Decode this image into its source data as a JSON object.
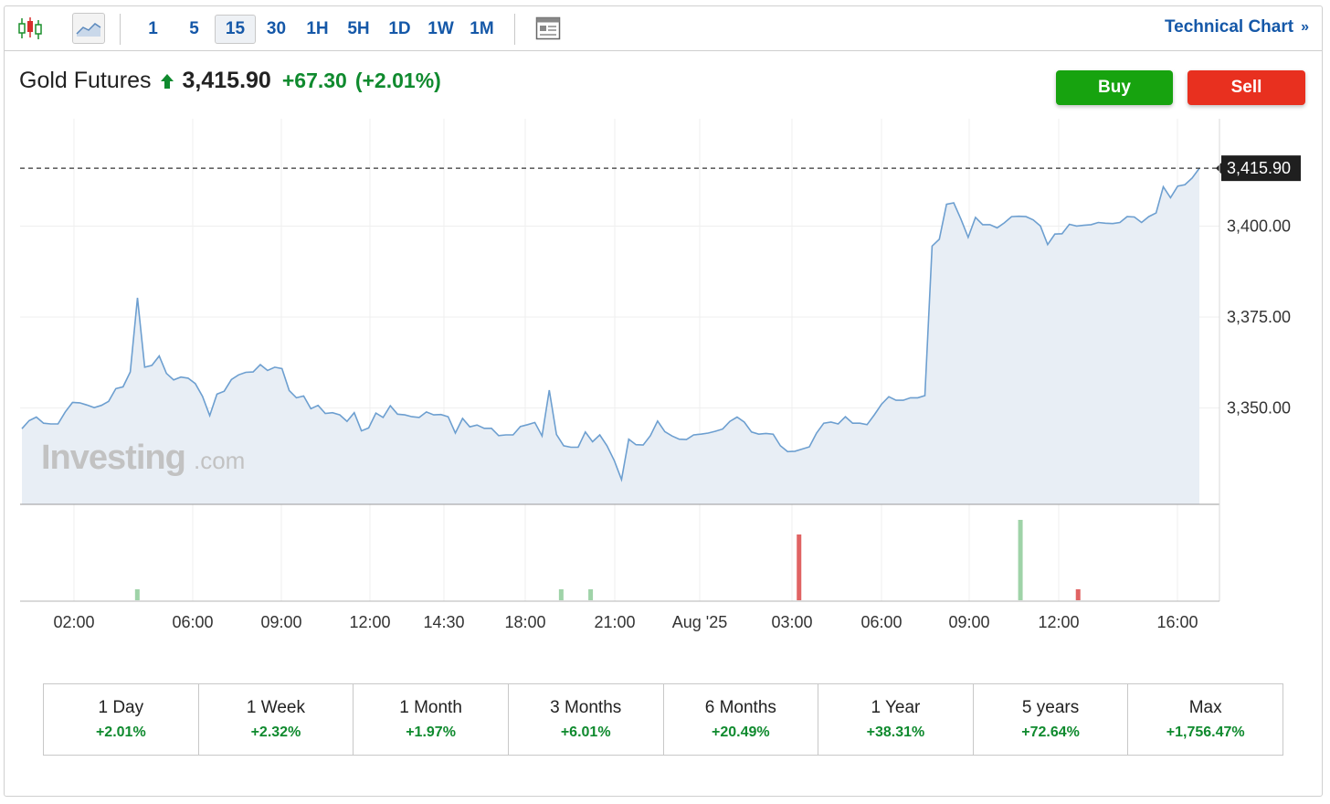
{
  "toolbar": {
    "intervals": [
      "1",
      "5",
      "15",
      "30",
      "1H",
      "5H",
      "1D",
      "1W",
      "1M"
    ],
    "active_interval": "15",
    "technical_chart_label": "Technical Chart",
    "technical_chart_chevron": "»",
    "icons": [
      "candlestick-icon",
      "line-chart-icon",
      "news-layout-icon"
    ]
  },
  "quote": {
    "name": "Gold Futures",
    "price": "3,415.90",
    "change": "+67.30",
    "change_pct": "(+2.01%)",
    "direction_icon": "up-arrow-icon"
  },
  "actions": {
    "buy_label": "Buy",
    "sell_label": "Sell"
  },
  "watermark": {
    "brand": "Investing",
    "suffix": ".com"
  },
  "colors": {
    "line": "#6d9fd0",
    "area": "#e8eef5",
    "positive": "#0f8a2e",
    "buy": "#17a30f",
    "sell": "#e8301f",
    "link": "#1558a8",
    "volume_up": "#9fd3a8",
    "volume_down": "#e06363"
  },
  "chart_data": {
    "type": "area",
    "x_tick_labels": [
      "02:00",
      "06:00",
      "09:00",
      "12:00",
      "14:30",
      "18:00",
      "21:00",
      "Aug '25",
      "03:00",
      "06:00",
      "09:00",
      "12:00",
      "16:00"
    ],
    "y_tick_labels": [
      "3,400.00",
      "3,375.00",
      "3,350.00"
    ],
    "y_ticks": [
      3400,
      3375,
      3350
    ],
    "ylim": [
      3323.5,
      3429.5
    ],
    "last_price_label": "3,415.90",
    "last_price": 3415.9,
    "grid": true,
    "series": [
      {
        "values": [
          3344.3,
          3346.5,
          3347.5,
          3345.8,
          3345.6,
          3345.6,
          3348.9,
          3351.5,
          3351.4,
          3350.8,
          3350.1,
          3350.7,
          3351.8,
          3355.3,
          3355.8,
          3359.9,
          3380.3,
          3361.2,
          3361.7,
          3364.3,
          3359.5,
          3357.7,
          3358.5,
          3358.2,
          3356.7,
          3353.2,
          3347.9,
          3353.8,
          3354.6,
          3357.8,
          3359.1,
          3359.8,
          3359.9,
          3361.9,
          3360.3,
          3361.2,
          3360.8,
          3354.8,
          3352.8,
          3353.3,
          3349.8,
          3350.7,
          3348.5,
          3348.7,
          3348.1,
          3346.3,
          3348.7,
          3343.7,
          3344.5,
          3348.6,
          3347.4,
          3350.6,
          3348.3,
          3348.1,
          3347.6,
          3347.4,
          3348.9,
          3348.1,
          3348.2,
          3347.6,
          3343.1,
          3347.1,
          3344.8,
          3345.3,
          3344.4,
          3344.4,
          3342.4,
          3342.6,
          3342.6,
          3344.9,
          3345.4,
          3346.0,
          3342.3,
          3354.9,
          3342.7,
          3339.6,
          3339.2,
          3339.2,
          3343.4,
          3340.7,
          3342.6,
          3339.6,
          3335.5,
          3330.3,
          3341.4,
          3339.9,
          3339.8,
          3342.4,
          3346.4,
          3343.5,
          3342.3,
          3341.4,
          3341.3,
          3342.6,
          3342.8,
          3343.1,
          3343.6,
          3344.2,
          3346.3,
          3347.5,
          3346.1,
          3343.4,
          3342.8,
          3343.0,
          3342.8,
          3339.6,
          3338.0,
          3338.1,
          3338.7,
          3339.3,
          3343.1,
          3345.8,
          3346.1,
          3345.6,
          3347.6,
          3345.8,
          3345.8,
          3345.4,
          3348.1,
          3351.0,
          3353.1,
          3352.1,
          3352.1,
          3352.8,
          3352.8,
          3353.4,
          3394.5,
          3396.4,
          3406.0,
          3406.4,
          3401.9,
          3396.9,
          3402.4,
          3400.4,
          3400.4,
          3399.5,
          3400.9,
          3402.6,
          3402.7,
          3402.6,
          3401.7,
          3400.0,
          3394.9,
          3397.8,
          3397.9,
          3400.5,
          3400.0,
          3400.2,
          3400.4,
          3401.0,
          3400.8,
          3400.7,
          3401.0,
          3402.6,
          3402.5,
          3401.0,
          3402.6,
          3403.6,
          3410.8,
          3407.8,
          3411.0,
          3411.4,
          3413.2,
          3415.9
        ]
      }
    ],
    "volume": [
      {
        "time_pos": 0.098,
        "value": 12,
        "direction": "up"
      },
      {
        "time_pos": 0.458,
        "value": 12,
        "direction": "up"
      },
      {
        "time_pos": 0.483,
        "value": 12,
        "direction": "up"
      },
      {
        "time_pos": 0.66,
        "value": 72,
        "direction": "down"
      },
      {
        "time_pos": 0.848,
        "value": 88,
        "direction": "up"
      },
      {
        "time_pos": 0.897,
        "value": 12,
        "direction": "down"
      }
    ]
  },
  "periods": [
    {
      "label": "1 Day",
      "value": "+2.01%"
    },
    {
      "label": "1 Week",
      "value": "+2.32%"
    },
    {
      "label": "1 Month",
      "value": "+1.97%"
    },
    {
      "label": "3 Months",
      "value": "+6.01%"
    },
    {
      "label": "6 Months",
      "value": "+20.49%"
    },
    {
      "label": "1 Year",
      "value": "+38.31%"
    },
    {
      "label": "5 years",
      "value": "+72.64%"
    },
    {
      "label": "Max",
      "value": "+1,756.47%"
    }
  ]
}
